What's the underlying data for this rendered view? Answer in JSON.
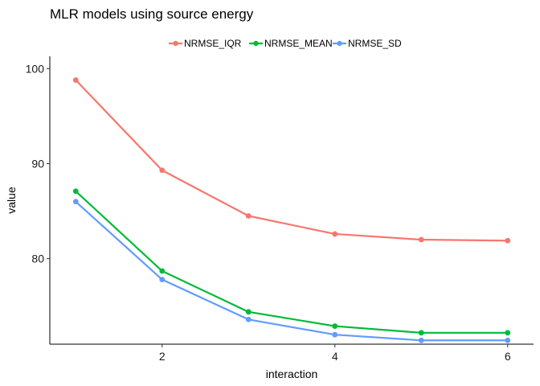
{
  "chart_data": {
    "type": "line",
    "title": "MLR models using source energy",
    "xlabel": "interaction",
    "ylabel": "value",
    "x": [
      1,
      2,
      3,
      4,
      5,
      6
    ],
    "xticks": [
      2,
      4,
      6
    ],
    "yticks": [
      80,
      90,
      100
    ],
    "xlim": [
      0.7,
      6.3
    ],
    "ylim": [
      71.0,
      101.3
    ],
    "grid": false,
    "legend_position": "top",
    "series": [
      {
        "name": "NRMSE_IQR",
        "color": "#F8766D",
        "values": [
          98.8,
          89.3,
          84.5,
          82.6,
          82.0,
          81.9
        ]
      },
      {
        "name": "NRMSE_MEAN",
        "color": "#00BA38",
        "values": [
          87.1,
          78.7,
          74.4,
          72.9,
          72.2,
          72.2
        ]
      },
      {
        "name": "NRMSE_SD",
        "color": "#619CFF",
        "values": [
          86.0,
          77.8,
          73.6,
          72.0,
          71.4,
          71.4
        ]
      }
    ]
  }
}
